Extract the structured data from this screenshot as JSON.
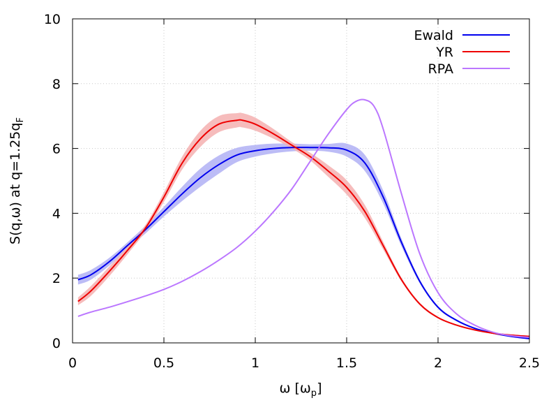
{
  "chart_data": {
    "type": "line",
    "xlabel_main": "ω [ω",
    "xlabel_sub": "p",
    "xlabel_end": "]",
    "ylabel_main": "S(q,ω) at q=1.25q",
    "ylabel_sub": "F",
    "xlim": [
      0,
      2.5
    ],
    "ylim": [
      0,
      10
    ],
    "xticks": [
      "0",
      "0.5",
      "1",
      "1.5",
      "2",
      "2.5"
    ],
    "xtick_values": [
      0,
      0.5,
      1,
      1.5,
      2,
      2.5
    ],
    "yticks": [
      "0",
      "2",
      "4",
      "6",
      "8",
      "10"
    ],
    "ytick_values": [
      0,
      2,
      4,
      6,
      8,
      10
    ],
    "grid": true,
    "legend_position": "top-right",
    "series": [
      {
        "name": "Ewald",
        "color": "#0000ee",
        "band_color": "#b0b0f5",
        "x": [
          0.03,
          0.1,
          0.2,
          0.3,
          0.4,
          0.5,
          0.6,
          0.7,
          0.8,
          0.9,
          1.0,
          1.1,
          1.2,
          1.3,
          1.4,
          1.5,
          1.6,
          1.7,
          1.8,
          1.9,
          2.0,
          2.1,
          2.2,
          2.3,
          2.4,
          2.5
        ],
        "y": [
          1.95,
          2.1,
          2.5,
          3.0,
          3.5,
          4.05,
          4.6,
          5.1,
          5.5,
          5.8,
          5.93,
          6.0,
          6.03,
          6.03,
          6.02,
          5.95,
          5.55,
          4.5,
          3.1,
          1.9,
          1.1,
          0.7,
          0.45,
          0.3,
          0.2,
          0.13
        ],
        "err": [
          0.15,
          0.15,
          0.12,
          0.1,
          0.12,
          0.15,
          0.22,
          0.28,
          0.28,
          0.22,
          0.18,
          0.15,
          0.12,
          0.1,
          0.12,
          0.2,
          0.25,
          0.2,
          0.12,
          0.06,
          0.04,
          0.03,
          0.02,
          0.02,
          0.02,
          0.02
        ]
      },
      {
        "name": "YR",
        "color": "#ee0000",
        "band_color": "#f5b0b0",
        "x": [
          0.03,
          0.1,
          0.2,
          0.3,
          0.4,
          0.5,
          0.6,
          0.7,
          0.8,
          0.9,
          0.93,
          1.0,
          1.1,
          1.2,
          1.3,
          1.4,
          1.5,
          1.6,
          1.7,
          1.8,
          1.9,
          2.0,
          2.1,
          2.2,
          2.3,
          2.4,
          2.5
        ],
        "y": [
          1.28,
          1.6,
          2.2,
          2.85,
          3.55,
          4.5,
          5.55,
          6.3,
          6.75,
          6.87,
          6.87,
          6.75,
          6.45,
          6.1,
          5.75,
          5.3,
          4.8,
          4.05,
          3.0,
          1.95,
          1.2,
          0.78,
          0.55,
          0.4,
          0.3,
          0.24,
          0.2
        ],
        "err": [
          0.12,
          0.15,
          0.15,
          0.12,
          0.1,
          0.15,
          0.2,
          0.25,
          0.25,
          0.22,
          0.22,
          0.2,
          0.15,
          0.1,
          0.12,
          0.18,
          0.22,
          0.2,
          0.12,
          0.06,
          0.04,
          0.03,
          0.02,
          0.02,
          0.02,
          0.02,
          0.02
        ]
      },
      {
        "name": "RPA",
        "color": "#bb77ff",
        "x": [
          0.03,
          0.1,
          0.2,
          0.3,
          0.4,
          0.5,
          0.6,
          0.7,
          0.8,
          0.9,
          1.0,
          1.1,
          1.2,
          1.3,
          1.4,
          1.5,
          1.55,
          1.6,
          1.65,
          1.7,
          1.8,
          1.9,
          2.0,
          2.1,
          2.2,
          2.3,
          2.4,
          2.5
        ],
        "y": [
          0.82,
          0.95,
          1.1,
          1.27,
          1.45,
          1.65,
          1.9,
          2.2,
          2.55,
          2.95,
          3.45,
          4.05,
          4.75,
          5.6,
          6.45,
          7.2,
          7.45,
          7.5,
          7.3,
          6.6,
          4.6,
          2.75,
          1.55,
          0.9,
          0.55,
          0.33,
          0.22,
          0.17
        ],
        "err": null
      }
    ]
  }
}
